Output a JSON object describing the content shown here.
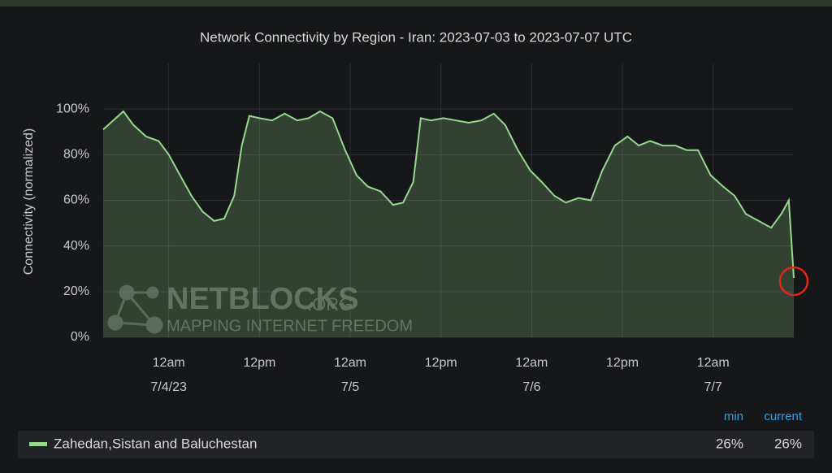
{
  "chart_data": {
    "type": "area",
    "title": "Network Connectivity by Region - Iran: 2023-07-03 to 2023-07-07 UTC",
    "y_label": "Connectivity (normalized)",
    "x": [
      "2023-07-03 15:20",
      "2023-07-03 16:40",
      "2023-07-03 18:00",
      "2023-07-03 19:20",
      "2023-07-03 21:00",
      "2023-07-03 22:40",
      "2023-07-04 00:00",
      "2023-07-04 01:30",
      "2023-07-04 03:00",
      "2023-07-04 04:30",
      "2023-07-04 06:00",
      "2023-07-04 07:20",
      "2023-07-04 08:40",
      "2023-07-04 09:40",
      "2023-07-04 10:40",
      "2023-07-04 12:00",
      "2023-07-04 13:40",
      "2023-07-04 15:20",
      "2023-07-04 17:00",
      "2023-07-04 18:30",
      "2023-07-04 20:00",
      "2023-07-04 21:40",
      "2023-07-04 23:20",
      "2023-07-05 00:50",
      "2023-07-05 02:20",
      "2023-07-05 04:00",
      "2023-07-05 05:40",
      "2023-07-05 07:00",
      "2023-07-05 08:20",
      "2023-07-05 09:20",
      "2023-07-05 10:40",
      "2023-07-05 12:20",
      "2023-07-05 14:00",
      "2023-07-05 15:40",
      "2023-07-05 17:20",
      "2023-07-05 19:00",
      "2023-07-05 20:30",
      "2023-07-05 22:10",
      "2023-07-05 23:50",
      "2023-07-06 01:20",
      "2023-07-06 03:00",
      "2023-07-06 04:30",
      "2023-07-06 06:10",
      "2023-07-06 07:50",
      "2023-07-06 09:20",
      "2023-07-06 11:00",
      "2023-07-06 12:40",
      "2023-07-06 14:10",
      "2023-07-06 15:40",
      "2023-07-06 17:20",
      "2023-07-06 19:00",
      "2023-07-06 20:30",
      "2023-07-06 22:00",
      "2023-07-06 23:40",
      "2023-07-07 01:20",
      "2023-07-07 02:50",
      "2023-07-07 04:20",
      "2023-07-07 06:00",
      "2023-07-07 07:40",
      "2023-07-07 09:00",
      "2023-07-07 10:00",
      "2023-07-07 10:40"
    ],
    "series": [
      {
        "name": "Zahedan,Sistan and Baluchestan",
        "color": "#96d98d",
        "values": [
          91,
          95,
          99,
          93,
          88,
          86,
          80,
          71,
          62,
          55,
          51,
          52,
          62,
          84,
          97,
          96,
          95,
          98,
          95,
          96,
          99,
          96,
          82,
          71,
          66,
          64,
          58,
          59,
          68,
          96,
          95,
          96,
          95,
          94,
          95,
          98,
          93,
          82,
          73,
          68,
          62,
          59,
          61,
          60,
          73,
          84,
          88,
          84,
          86,
          84,
          84,
          82,
          82,
          71,
          66,
          62,
          54,
          51,
          48,
          54,
          60,
          26
        ],
        "stats": [
          {
            "value": 26,
            "label": "26%"
          },
          {
            "value": 26,
            "label": "26%"
          }
        ]
      }
    ],
    "stat_names": [
      "min",
      "current"
    ],
    "xlim": [
      "2023-07-03 15:20",
      "2023-07-07 10:40"
    ],
    "xticks": [
      {
        "value": "2023-07-04 00:00",
        "label": [
          "12am",
          "7/4/23"
        ]
      },
      {
        "value": "2023-07-04 12:00",
        "label": [
          "12pm"
        ]
      },
      {
        "value": "2023-07-05 00:00",
        "label": [
          "12am",
          "7/5"
        ]
      },
      {
        "value": "2023-07-05 12:00",
        "label": [
          "12pm"
        ]
      },
      {
        "value": "2023-07-06 00:00",
        "label": [
          "12am",
          "7/6"
        ]
      },
      {
        "value": "2023-07-06 12:00",
        "label": [
          "12pm"
        ]
      },
      {
        "value": "2023-07-07 00:00",
        "label": [
          "12am",
          "7/7"
        ]
      }
    ],
    "ylim": [
      0,
      120
    ],
    "yticks": [
      {
        "value": 0,
        "label": "0%"
      },
      {
        "value": 20,
        "label": "20%"
      },
      {
        "value": 40,
        "label": "40%"
      },
      {
        "value": 60,
        "label": "60%"
      },
      {
        "value": 80,
        "label": "80%"
      },
      {
        "value": 100,
        "label": "100%"
      }
    ],
    "grid": true,
    "watermark": {
      "brand": "NETBLOCKS",
      "suffix": ".ORG",
      "tagline": "MAPPING INTERNET FREEDOM"
    }
  }
}
